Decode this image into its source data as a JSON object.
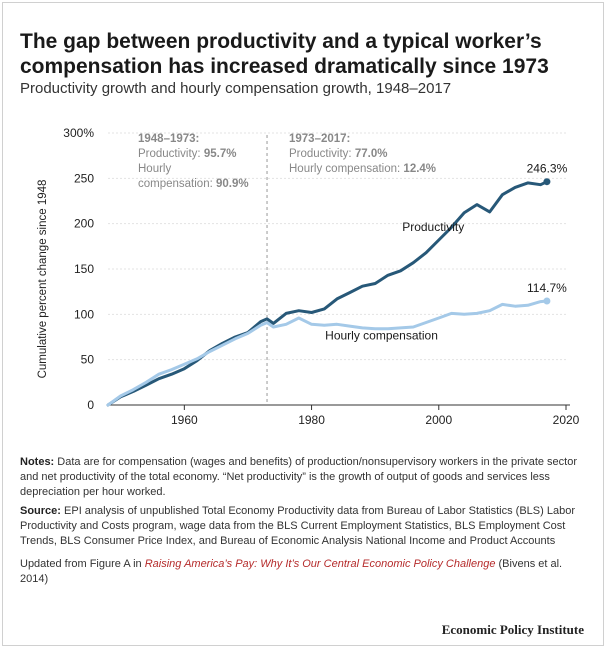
{
  "header": {
    "title": "The gap between productivity and a typical worker’s compensation has increased dramatically since 1973",
    "subtitle": "Productivity growth and hourly compensation growth, 1948–2017"
  },
  "annotations": {
    "left_heading": "1948–1973:",
    "left_prod_label": "Productivity: ",
    "left_prod_value": "95.7%",
    "left_comp_label1": "Hourly",
    "left_comp_label2": "compensation: ",
    "left_comp_value": "90.9%",
    "right_heading": "1973–2017:",
    "right_prod_label": "Productivity: ",
    "right_prod_value": "77.0%",
    "right_comp_label": "Hourly compensation: ",
    "right_comp_value": "12.4%"
  },
  "notes": {
    "notes_label": "Notes:",
    "notes_text": " Data are for compensation (wages and benefits) of production/nonsupervisory workers in the private sector and net productivity of the total economy. “Net productivity” is the growth of output of goods and services less depreciation per hour worked.",
    "source_label": "Source:",
    "source_text": " EPI analysis of unpublished Total Economy Productivity data from Bureau of Labor Statistics (BLS) Labor Productivity and Costs program, wage data from the BLS Current Employment Statistics, BLS Employment Cost Trends, BLS Consumer Price Index, and Bureau of Economic Analysis National Income and Product Accounts",
    "updated_prefix": "Updated from Figure A in ",
    "updated_link": "Raising America’s Pay: Why It’s Our Central Economic Policy Challenge",
    "updated_suffix": " (Bivens et al. 2014)"
  },
  "brand": "Economic Policy Institute",
  "colors": {
    "productivity": "#275878",
    "compensation": "#a4c9e8",
    "annotation": "#888888",
    "axis": "#333333"
  },
  "chart_data": {
    "type": "line",
    "title": "Productivity growth and hourly compensation growth, 1948–2017",
    "xlabel": "",
    "ylabel": "Cumulative percent change since 1948",
    "xlim": [
      1948,
      2020
    ],
    "ylim": [
      0,
      300
    ],
    "xticks": [
      1960,
      1980,
      2000,
      2020
    ],
    "yticks": [
      0,
      50,
      100,
      150,
      200,
      250,
      300
    ],
    "ytick_labels": [
      "0",
      "50",
      "100",
      "150",
      "200",
      "250",
      "300%"
    ],
    "divider_x": 1973,
    "series": [
      {
        "name": "Productivity",
        "label": "Productivity",
        "end_label": "246.3%",
        "x": [
          1948,
          1950,
          1952,
          1954,
          1956,
          1958,
          1960,
          1962,
          1964,
          1966,
          1968,
          1970,
          1972,
          1973,
          1974,
          1976,
          1978,
          1980,
          1982,
          1984,
          1986,
          1988,
          1990,
          1992,
          1994,
          1996,
          1998,
          2000,
          2002,
          2004,
          2006,
          2008,
          2010,
          2012,
          2014,
          2016,
          2017
        ],
        "y": [
          0,
          9,
          15,
          22,
          29,
          34,
          40,
          49,
          60,
          68,
          75,
          80,
          92,
          95,
          90,
          101,
          104,
          102,
          106,
          117,
          124,
          131,
          134,
          143,
          148,
          157,
          168,
          182,
          196,
          212,
          221,
          213,
          232,
          240,
          245,
          243,
          246.3
        ]
      },
      {
        "name": "Hourly compensation",
        "label": "Hourly compensation",
        "end_label": "114.7%",
        "x": [
          1948,
          1950,
          1952,
          1954,
          1956,
          1958,
          1960,
          1962,
          1964,
          1966,
          1968,
          1970,
          1972,
          1973,
          1974,
          1976,
          1978,
          1980,
          1982,
          1984,
          1986,
          1988,
          1990,
          1992,
          1994,
          1996,
          1998,
          2000,
          2002,
          2004,
          2006,
          2008,
          2010,
          2012,
          2014,
          2016,
          2017
        ],
        "y": [
          0,
          10,
          17,
          25,
          34,
          39,
          45,
          51,
          59,
          66,
          73,
          79,
          88,
          90.9,
          86,
          89,
          96,
          89,
          88,
          89,
          87,
          85,
          84,
          84,
          85,
          86,
          91,
          96,
          101,
          100,
          101,
          104,
          111,
          109,
          110,
          114,
          114.7
        ]
      }
    ]
  }
}
